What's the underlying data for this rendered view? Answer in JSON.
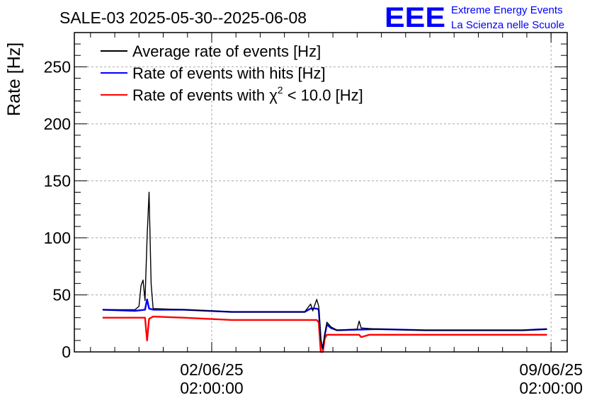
{
  "chart_data": {
    "type": "line",
    "title": "SALE-03 2025-05-30--2025-06-08",
    "ylabel": "Rate [Hz]",
    "xlabel": "",
    "ylim": [
      0,
      280
    ],
    "xlim": [
      "2025-05-30 06:00",
      "2025-06-09 10:00"
    ],
    "grid": true,
    "legend_position": "top-left",
    "y_ticks": [
      "0",
      "50",
      "100",
      "150",
      "200",
      "250"
    ],
    "x_ticks": [
      {
        "date": "02/06/25",
        "time": "02:00:00",
        "x": "2025-06-02 02:00"
      },
      {
        "date": "09/06/25",
        "time": "02:00:00",
        "x": "2025-06-09 02:00"
      }
    ],
    "legend": {
      "avg": "Average rate of events [Hz]",
      "hits": "Rate of events with hits [Hz]",
      "chi_prefix": "Rate of events with ",
      "chi_symbol": "χ",
      "chi_sup": "2",
      "chi_suffix": " < 10.0 [Hz]"
    },
    "series": [
      {
        "name": "Average rate of events [Hz]",
        "color": "#000000",
        "points": [
          [
            "2025-05-30 20:00",
            37
          ],
          [
            "2025-05-31 12:00",
            37
          ],
          [
            "2025-05-31 14:00",
            40
          ],
          [
            "2025-05-31 15:00",
            58
          ],
          [
            "2025-05-31 16:00",
            63
          ],
          [
            "2025-05-31 17:00",
            45
          ],
          [
            "2025-05-31 18:00",
            100
          ],
          [
            "2025-05-31 19:00",
            140
          ],
          [
            "2025-05-31 20:00",
            60
          ],
          [
            "2025-05-31 21:00",
            38
          ],
          [
            "2025-06-01 12:00",
            37
          ],
          [
            "2025-06-02 12:00",
            35
          ],
          [
            "2025-06-03 12:00",
            35
          ],
          [
            "2025-06-04 00:00",
            35
          ],
          [
            "2025-06-04 03:00",
            42
          ],
          [
            "2025-06-04 04:00",
            36
          ],
          [
            "2025-06-04 06:00",
            46
          ],
          [
            "2025-06-04 07:00",
            40
          ],
          [
            "2025-06-04 08:00",
            10
          ],
          [
            "2025-06-04 09:00",
            3
          ],
          [
            "2025-06-04 10:00",
            15
          ],
          [
            "2025-06-04 11:00",
            26
          ],
          [
            "2025-06-04 13:00",
            22
          ],
          [
            "2025-06-04 16:00",
            19
          ],
          [
            "2025-06-05 02:00",
            20
          ],
          [
            "2025-06-05 03:00",
            27
          ],
          [
            "2025-06-05 04:00",
            21
          ],
          [
            "2025-06-05 12:00",
            20
          ],
          [
            "2025-06-06 12:00",
            19
          ],
          [
            "2025-06-07 12:00",
            19
          ],
          [
            "2025-06-08 12:00",
            19
          ],
          [
            "2025-06-09 00:00",
            20
          ]
        ]
      },
      {
        "name": "Rate of events with hits [Hz]",
        "color": "#0000ff",
        "points": [
          [
            "2025-05-30 20:00",
            37
          ],
          [
            "2025-05-31 12:00",
            36
          ],
          [
            "2025-05-31 17:00",
            37
          ],
          [
            "2025-05-31 18:00",
            46
          ],
          [
            "2025-05-31 19:00",
            38
          ],
          [
            "2025-05-31 21:00",
            37
          ],
          [
            "2025-06-01 12:00",
            37
          ],
          [
            "2025-06-02 12:00",
            35
          ],
          [
            "2025-06-03 12:00",
            35
          ],
          [
            "2025-06-04 00:00",
            35
          ],
          [
            "2025-06-04 03:00",
            38
          ],
          [
            "2025-06-04 06:00",
            38
          ],
          [
            "2025-06-04 07:00",
            37
          ],
          [
            "2025-06-04 08:00",
            10
          ],
          [
            "2025-06-04 09:00",
            2
          ],
          [
            "2025-06-04 10:00",
            15
          ],
          [
            "2025-06-04 11:00",
            24
          ],
          [
            "2025-06-04 13:00",
            21
          ],
          [
            "2025-06-04 16:00",
            19
          ],
          [
            "2025-06-05 12:00",
            20
          ],
          [
            "2025-06-06 12:00",
            19
          ],
          [
            "2025-06-07 12:00",
            19
          ],
          [
            "2025-06-08 12:00",
            19
          ],
          [
            "2025-06-09 00:00",
            20
          ]
        ]
      },
      {
        "name": "Rate of events with χ2 < 10.0 [Hz]",
        "color": "#ff0000",
        "points": [
          [
            "2025-05-30 20:00",
            30
          ],
          [
            "2025-05-31 12:00",
            30
          ],
          [
            "2025-05-31 17:00",
            30
          ],
          [
            "2025-05-31 18:00",
            10
          ],
          [
            "2025-05-31 19:00",
            29
          ],
          [
            "2025-05-31 21:00",
            31
          ],
          [
            "2025-06-01 12:00",
            30
          ],
          [
            "2025-06-02 12:00",
            28
          ],
          [
            "2025-06-03 12:00",
            28
          ],
          [
            "2025-06-04 00:00",
            28
          ],
          [
            "2025-06-04 06:00",
            28
          ],
          [
            "2025-06-04 07:00",
            26
          ],
          [
            "2025-06-04 08:00",
            0
          ],
          [
            "2025-06-04 09:00",
            0
          ],
          [
            "2025-06-04 10:00",
            12
          ],
          [
            "2025-06-04 11:00",
            15
          ],
          [
            "2025-06-04 16:00",
            15
          ],
          [
            "2025-06-05 03:00",
            15
          ],
          [
            "2025-06-05 04:00",
            13
          ],
          [
            "2025-06-05 08:00",
            15
          ],
          [
            "2025-06-06 12:00",
            15
          ],
          [
            "2025-06-07 12:00",
            15
          ],
          [
            "2025-06-08 12:00",
            15
          ],
          [
            "2025-06-09 00:00",
            15
          ]
        ]
      }
    ]
  },
  "logo": {
    "mark": "EEE",
    "line1": "Extreme Energy Events",
    "line2": "La Scienza nelle Scuole",
    "color": "#0000ff"
  }
}
